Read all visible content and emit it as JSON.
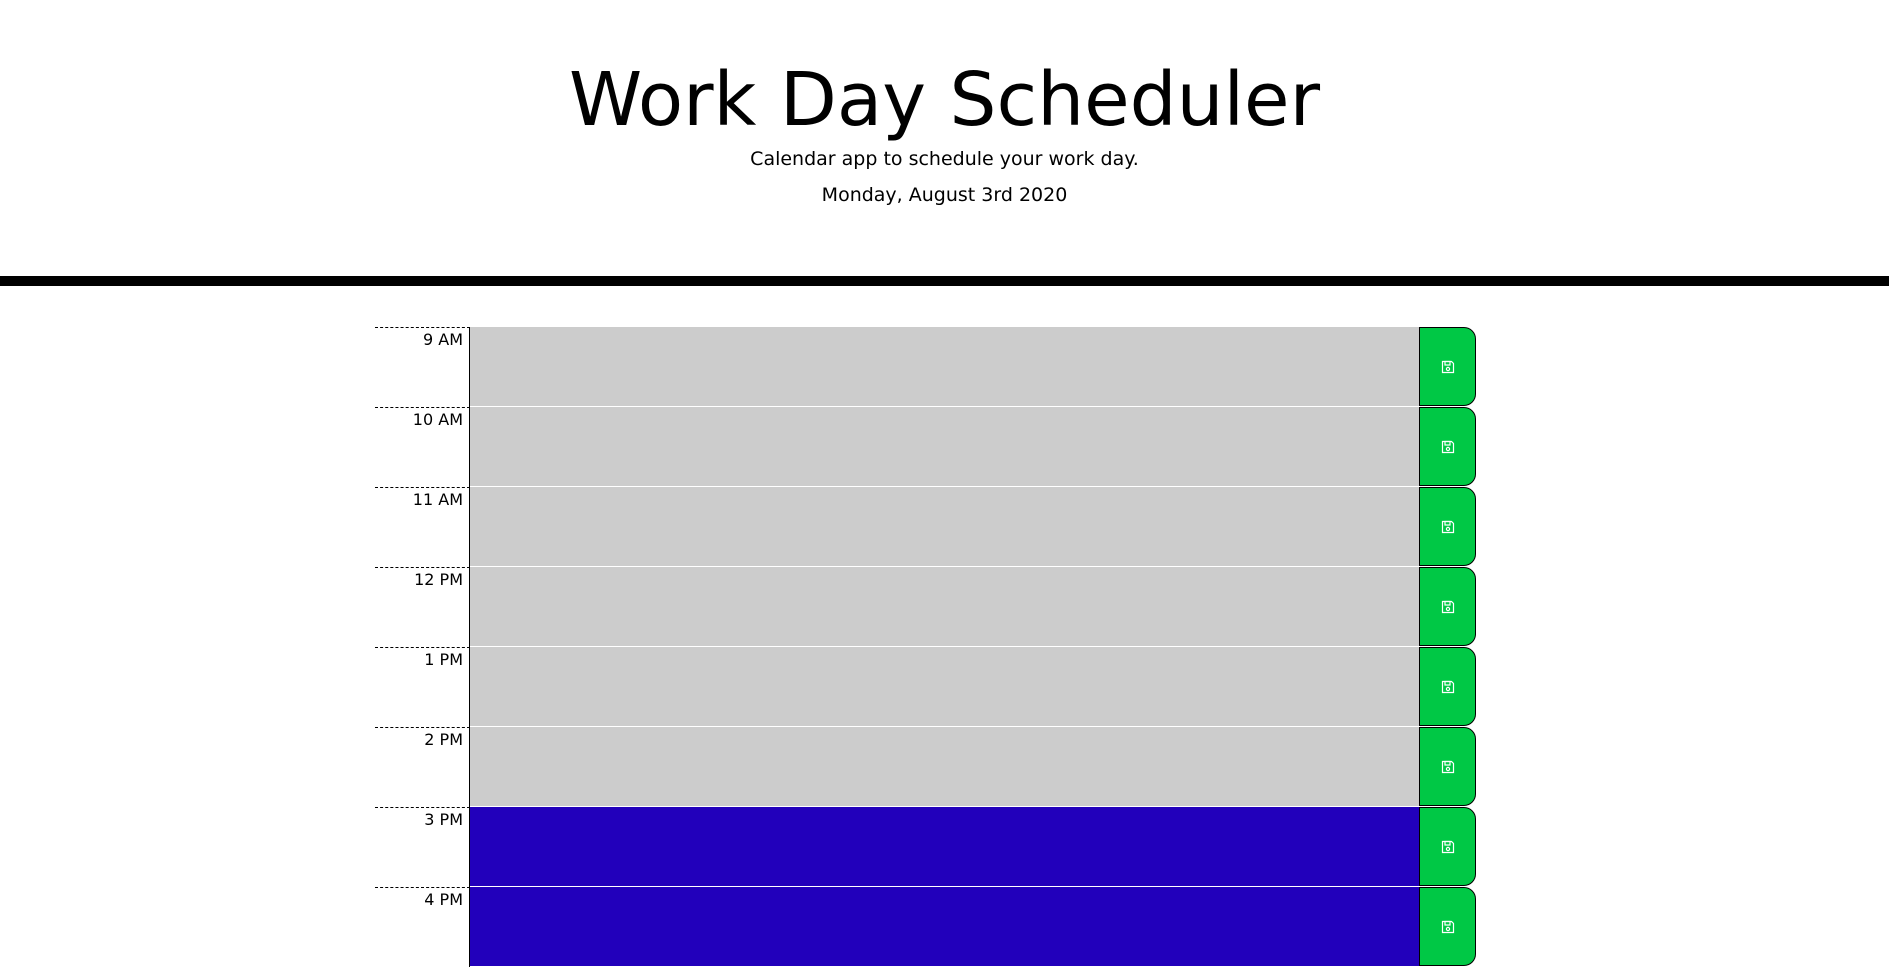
{
  "header": {
    "title": "Work Day Scheduler",
    "subtitle": "Calendar app to schedule your work day.",
    "current_date": "Monday, August 3rd 2020"
  },
  "colors": {
    "past": "#cccccc",
    "future": "#2200bb",
    "save_button": "#00c845"
  },
  "save_icon": "floppy-disk-icon",
  "time_blocks": [
    {
      "hour": "9 AM",
      "status": "past",
      "text": ""
    },
    {
      "hour": "10 AM",
      "status": "past",
      "text": ""
    },
    {
      "hour": "11 AM",
      "status": "past",
      "text": ""
    },
    {
      "hour": "12 PM",
      "status": "past",
      "text": ""
    },
    {
      "hour": "1 PM",
      "status": "past",
      "text": ""
    },
    {
      "hour": "2 PM",
      "status": "past",
      "text": ""
    },
    {
      "hour": "3 PM",
      "status": "future",
      "text": ""
    },
    {
      "hour": "4 PM",
      "status": "future",
      "text": ""
    }
  ]
}
